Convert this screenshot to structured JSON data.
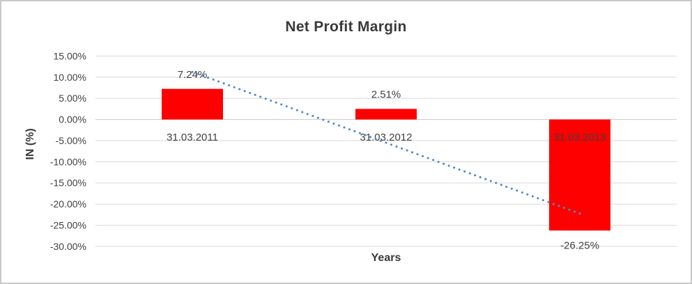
{
  "title": "Net Profit Margin",
  "colors": {
    "bar": "#ff0000",
    "gridline": "#d9d9d9",
    "axis_line": "#c9c9c9",
    "trendline": "#4e8ac8",
    "text": "#404040",
    "title_text": "#3a3a3a",
    "frame_border": "#c9c9c9"
  },
  "chart_data": {
    "type": "bar",
    "title": "Net Profit Margin",
    "xlabel": "Years",
    "ylabel": "IN (%)",
    "categories": [
      "31.03.2011",
      "31.03.2012",
      "31.03.2013"
    ],
    "values": [
      7.24,
      2.51,
      -26.25
    ],
    "data_labels": [
      "7.24%",
      "2.51%",
      "-26.25%"
    ],
    "series_name": "Net Profit Margin",
    "bar_color": "#ff0000",
    "ylim": [
      -30,
      15
    ],
    "ytick_step": 5,
    "yticks": [
      15,
      10,
      5,
      0,
      -5,
      -10,
      -15,
      -20,
      -25,
      -30
    ],
    "ytick_labels": [
      "15.00%",
      "10.00%",
      "5.00%",
      "0.00%",
      "-5.00%",
      "-10.00%",
      "-15.00%",
      "-20.00%",
      "-25.00%",
      "-30.00%"
    ],
    "grid": true,
    "legend": "none",
    "trendline": {
      "type": "linear",
      "style": "dotted",
      "color": "#4e8ac8",
      "start_value": 11.25,
      "end_value": -22.24
    }
  }
}
